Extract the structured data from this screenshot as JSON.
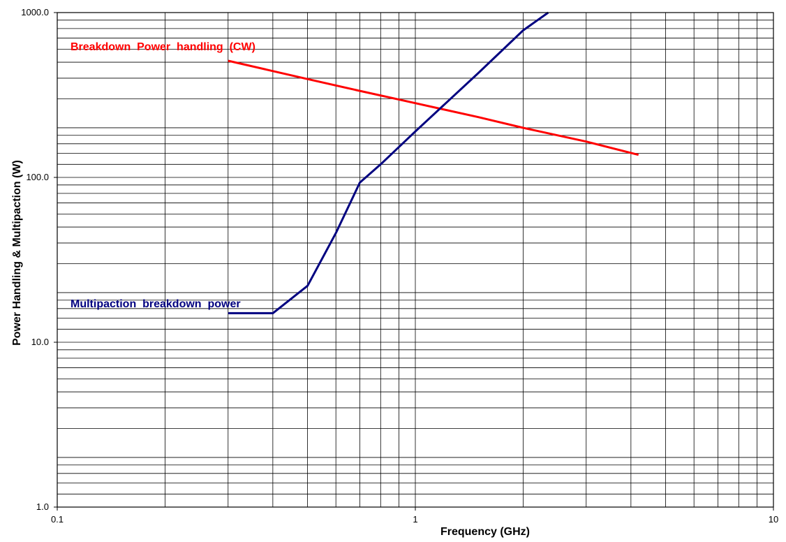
{
  "chart_data": {
    "type": "line",
    "xscale": "log",
    "yscale": "log",
    "xlim": [
      0.1,
      10
    ],
    "ylim": [
      1.0,
      1000.0
    ],
    "grid": true,
    "xlabel": "Frequency (GHz)",
    "ylabel": "Power Handling & Multipaction (W)",
    "x_ticks": [
      {
        "value": 0.1,
        "label": "0.1"
      },
      {
        "value": 1,
        "label": "1"
      },
      {
        "value": 10,
        "label": "10"
      }
    ],
    "y_ticks": [
      {
        "value": 1.0,
        "label": "1.0"
      },
      {
        "value": 10.0,
        "label": "10.0"
      },
      {
        "value": 100.0,
        "label": "100.0"
      },
      {
        "value": 1000.0,
        "label": "1000.0"
      }
    ],
    "series": [
      {
        "name": "Breakdown  Power  handling  (CW)",
        "color": "#ff0000",
        "x": [
          0.3,
          0.5,
          0.7,
          1.0,
          1.5,
          2.0,
          3.0,
          4.2
        ],
        "y": [
          510,
          395,
          335,
          282,
          232,
          200,
          165,
          137
        ]
      },
      {
        "name": "Multipaction  breakdown  power",
        "color": "#000080",
        "x": [
          0.3,
          0.4,
          0.5,
          0.6,
          0.7,
          0.8,
          1.0,
          1.5,
          2.0,
          2.35
        ],
        "y": [
          15,
          15,
          22,
          46,
          93,
          120,
          190,
          430,
          780,
          1000
        ]
      }
    ]
  }
}
